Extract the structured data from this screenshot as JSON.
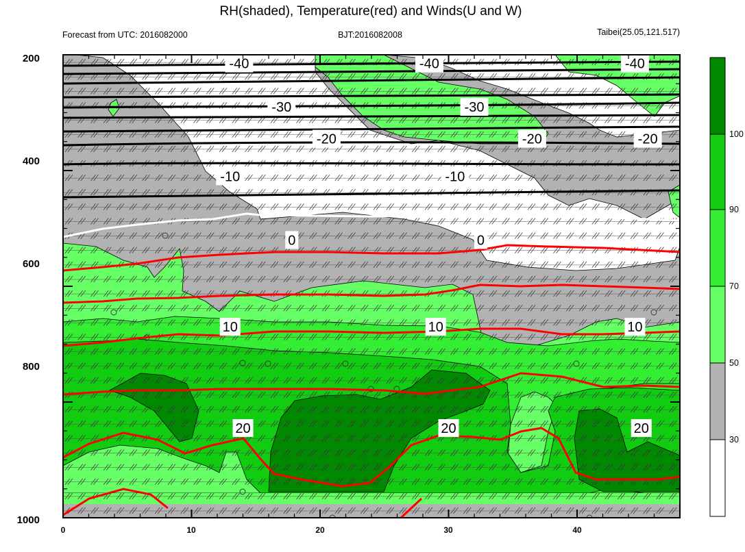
{
  "chart_data": {
    "type": "time-height cross section (filled contour with line contours and wind barbs)",
    "title": "RH(shaded), Temperature(red) and Winds(U and W)",
    "subtitle_left": "Forecast from UTC: 2016082000",
    "subtitle_center": "BJT:2016082008",
    "subtitle_right": "Taibei(25.05,121.517)",
    "x_axis": {
      "ticks": [
        0,
        10,
        20,
        30,
        40
      ],
      "tick_labels": [
        "0",
        "10",
        "20",
        "30",
        "40"
      ],
      "range": [
        0,
        48
      ]
    },
    "y_axis": {
      "ticks": [
        200,
        400,
        600,
        800,
        1000
      ],
      "tick_labels": [
        "200",
        "400",
        "600",
        "800",
        "1000"
      ],
      "range": [
        200,
        1000
      ],
      "reversed": true
    },
    "colorbar": {
      "tick_labels": [
        "30",
        "50",
        "70",
        "90",
        "100"
      ],
      "levels": [
        30,
        50,
        70,
        90,
        100
      ],
      "colors": [
        "#ffffff",
        "#b2b2b2",
        "#66ff66",
        "#33ee33",
        "#11cc11",
        "#008800"
      ]
    },
    "temperature_contours": [
      {
        "value": -40,
        "color": "#000000",
        "level": 215,
        "labels": [
          {
            "text": "-40",
            "x": 13.7
          },
          {
            "text": "-40",
            "x": 28.5
          },
          {
            "text": "-40",
            "x": 44.5
          }
        ]
      },
      {
        "value": -30,
        "color": "#000000",
        "level": 290,
        "labels": [
          {
            "text": "-30",
            "x": 17.0
          },
          {
            "text": "-30",
            "x": 32.0
          }
        ]
      },
      {
        "value": -20,
        "color": "#000000",
        "level": 345,
        "labels": [
          {
            "text": "-20",
            "x": 20.5
          },
          {
            "text": "-20",
            "x": 36.5
          },
          {
            "text": "-20",
            "x": 45.5
          }
        ]
      },
      {
        "value": -10,
        "color": "#000000",
        "level": 410,
        "labels": [
          {
            "text": "-10",
            "x": 13.0
          },
          {
            "text": "-10",
            "x": 30.5
          }
        ]
      },
      {
        "value": 0,
        "color": "#ffffff",
        "level": 520,
        "labels": [
          {
            "text": "0",
            "x": 17.8
          },
          {
            "text": "0",
            "x": 32.5
          }
        ]
      },
      {
        "value": 10,
        "color": "#ff0000",
        "level": 670,
        "labels": [
          {
            "text": "10",
            "x": 13.0
          },
          {
            "text": "10",
            "x": 29.0
          },
          {
            "text": "10",
            "x": 44.5
          }
        ]
      },
      {
        "value": 20,
        "color": "#ff0000",
        "level": 845,
        "labels": [
          {
            "text": "20",
            "x": 14.0
          },
          {
            "text": "20",
            "x": 30.0
          },
          {
            "text": "20",
            "x": 45.0
          }
        ]
      }
    ]
  }
}
